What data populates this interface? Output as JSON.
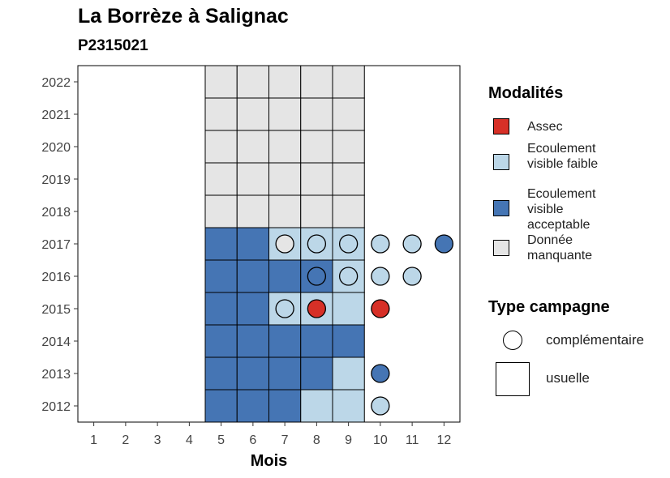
{
  "chart_data": {
    "type": "heatmap",
    "title": "La Borrèze à Salignac",
    "subtitle": "P2315021",
    "xlabel": "Mois",
    "ylabel": "",
    "x_categories": [
      "1",
      "2",
      "3",
      "4",
      "5",
      "6",
      "7",
      "8",
      "9",
      "10",
      "11",
      "12"
    ],
    "y_categories": [
      "2012",
      "2013",
      "2014",
      "2015",
      "2016",
      "2017",
      "2018",
      "2019",
      "2020",
      "2021",
      "2022"
    ],
    "modalites": {
      "title": "Modalités",
      "entries": [
        {
          "key": "assec",
          "label": "Assec",
          "color": "#d73027"
        },
        {
          "key": "faible",
          "label": "Ecoulement visible faible",
          "color": "#bcd7e8"
        },
        {
          "key": "acceptable",
          "label": "Ecoulement visible acceptable",
          "color": "#4575b4"
        },
        {
          "key": "manquante",
          "label": "Donnée manquante",
          "color": "#e5e5e5"
        }
      ]
    },
    "type_campagne": {
      "title": "Type campagne",
      "entries": [
        {
          "key": "complementaire",
          "label": "complémentaire",
          "shape": "circle"
        },
        {
          "key": "usuelle",
          "label": "usuelle",
          "shape": "square"
        }
      ]
    },
    "usuelle_cells": [
      {
        "year": "2012",
        "month": 5,
        "modalite": "acceptable"
      },
      {
        "year": "2012",
        "month": 6,
        "modalite": "acceptable"
      },
      {
        "year": "2012",
        "month": 7,
        "modalite": "acceptable"
      },
      {
        "year": "2012",
        "month": 8,
        "modalite": "faible"
      },
      {
        "year": "2012",
        "month": 9,
        "modalite": "faible"
      },
      {
        "year": "2013",
        "month": 5,
        "modalite": "acceptable"
      },
      {
        "year": "2013",
        "month": 6,
        "modalite": "acceptable"
      },
      {
        "year": "2013",
        "month": 7,
        "modalite": "acceptable"
      },
      {
        "year": "2013",
        "month": 8,
        "modalite": "acceptable"
      },
      {
        "year": "2013",
        "month": 9,
        "modalite": "faible"
      },
      {
        "year": "2014",
        "month": 5,
        "modalite": "acceptable"
      },
      {
        "year": "2014",
        "month": 6,
        "modalite": "acceptable"
      },
      {
        "year": "2014",
        "month": 7,
        "modalite": "acceptable"
      },
      {
        "year": "2014",
        "month": 8,
        "modalite": "acceptable"
      },
      {
        "year": "2014",
        "month": 9,
        "modalite": "acceptable"
      },
      {
        "year": "2015",
        "month": 5,
        "modalite": "acceptable"
      },
      {
        "year": "2015",
        "month": 6,
        "modalite": "acceptable"
      },
      {
        "year": "2015",
        "month": 7,
        "modalite": "faible"
      },
      {
        "year": "2015",
        "month": 8,
        "modalite": "faible"
      },
      {
        "year": "2015",
        "month": 9,
        "modalite": "faible"
      },
      {
        "year": "2016",
        "month": 5,
        "modalite": "acceptable"
      },
      {
        "year": "2016",
        "month": 6,
        "modalite": "acceptable"
      },
      {
        "year": "2016",
        "month": 7,
        "modalite": "acceptable"
      },
      {
        "year": "2016",
        "month": 8,
        "modalite": "acceptable"
      },
      {
        "year": "2016",
        "month": 9,
        "modalite": "faible"
      },
      {
        "year": "2017",
        "month": 5,
        "modalite": "acceptable"
      },
      {
        "year": "2017",
        "month": 6,
        "modalite": "acceptable"
      },
      {
        "year": "2017",
        "month": 7,
        "modalite": "faible"
      },
      {
        "year": "2017",
        "month": 8,
        "modalite": "faible"
      },
      {
        "year": "2017",
        "month": 9,
        "modalite": "faible"
      },
      {
        "year": "2018",
        "month": 5,
        "modalite": "manquante"
      },
      {
        "year": "2018",
        "month": 6,
        "modalite": "manquante"
      },
      {
        "year": "2018",
        "month": 7,
        "modalite": "manquante"
      },
      {
        "year": "2018",
        "month": 8,
        "modalite": "manquante"
      },
      {
        "year": "2018",
        "month": 9,
        "modalite": "manquante"
      },
      {
        "year": "2019",
        "month": 5,
        "modalite": "manquante"
      },
      {
        "year": "2019",
        "month": 6,
        "modalite": "manquante"
      },
      {
        "year": "2019",
        "month": 7,
        "modalite": "manquante"
      },
      {
        "year": "2019",
        "month": 8,
        "modalite": "manquante"
      },
      {
        "year": "2019",
        "month": 9,
        "modalite": "manquante"
      },
      {
        "year": "2020",
        "month": 5,
        "modalite": "manquante"
      },
      {
        "year": "2020",
        "month": 6,
        "modalite": "manquante"
      },
      {
        "year": "2020",
        "month": 7,
        "modalite": "manquante"
      },
      {
        "year": "2020",
        "month": 8,
        "modalite": "manquante"
      },
      {
        "year": "2020",
        "month": 9,
        "modalite": "manquante"
      },
      {
        "year": "2021",
        "month": 5,
        "modalite": "manquante"
      },
      {
        "year": "2021",
        "month": 6,
        "modalite": "manquante"
      },
      {
        "year": "2021",
        "month": 7,
        "modalite": "manquante"
      },
      {
        "year": "2021",
        "month": 8,
        "modalite": "manquante"
      },
      {
        "year": "2021",
        "month": 9,
        "modalite": "manquante"
      },
      {
        "year": "2022",
        "month": 5,
        "modalite": "manquante"
      },
      {
        "year": "2022",
        "month": 6,
        "modalite": "manquante"
      },
      {
        "year": "2022",
        "month": 7,
        "modalite": "manquante"
      },
      {
        "year": "2022",
        "month": 8,
        "modalite": "manquante"
      },
      {
        "year": "2022",
        "month": 9,
        "modalite": "manquante"
      }
    ],
    "complementaire_points": [
      {
        "year": "2012",
        "month": 10,
        "modalite": "faible"
      },
      {
        "year": "2013",
        "month": 10,
        "modalite": "acceptable"
      },
      {
        "year": "2015",
        "month": 7,
        "modalite": "faible"
      },
      {
        "year": "2015",
        "month": 8,
        "modalite": "assec"
      },
      {
        "year": "2015",
        "month": 10,
        "modalite": "assec"
      },
      {
        "year": "2016",
        "month": 8,
        "modalite": "acceptable"
      },
      {
        "year": "2016",
        "month": 9,
        "modalite": "faible"
      },
      {
        "year": "2016",
        "month": 10,
        "modalite": "faible"
      },
      {
        "year": "2016",
        "month": 11,
        "modalite": "faible"
      },
      {
        "year": "2017",
        "month": 7,
        "modalite": "manquante"
      },
      {
        "year": "2017",
        "month": 8,
        "modalite": "faible"
      },
      {
        "year": "2017",
        "month": 9,
        "modalite": "faible"
      },
      {
        "year": "2017",
        "month": 10,
        "modalite": "faible"
      },
      {
        "year": "2017",
        "month": 11,
        "modalite": "faible"
      },
      {
        "year": "2017",
        "month": 12,
        "modalite": "acceptable"
      }
    ]
  }
}
